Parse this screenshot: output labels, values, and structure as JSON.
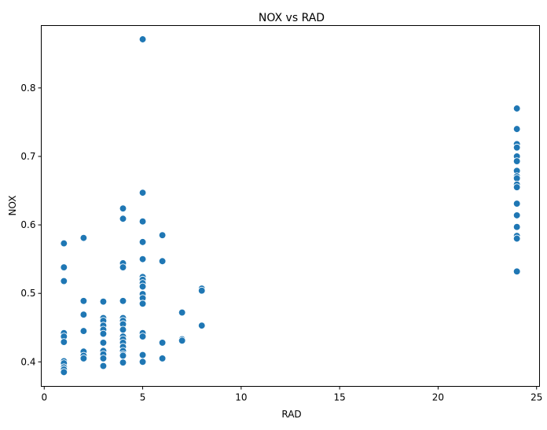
{
  "chart_data": {
    "type": "scatter",
    "title": "NOX vs RAD",
    "xlabel": "RAD",
    "ylabel": "NOX",
    "xlim": [
      -0.15,
      25.15
    ],
    "ylim": [
      0.3642,
      0.8911
    ],
    "xticks": [
      0,
      5,
      10,
      15,
      20,
      25
    ],
    "yticks": [
      0.4,
      0.5,
      0.6,
      0.7,
      0.8
    ],
    "xtick_labels": [
      "0",
      "5",
      "10",
      "15",
      "20",
      "25"
    ],
    "ytick_labels": [
      "0.4",
      "0.5",
      "0.6",
      "0.7",
      "0.8"
    ],
    "grid": false,
    "legend": "none",
    "point_color": "#1f77b4",
    "points": [
      {
        "x": 1,
        "y": 0.573
      },
      {
        "x": 1,
        "y": 0.538
      },
      {
        "x": 1,
        "y": 0.518
      },
      {
        "x": 1,
        "y": 0.442
      },
      {
        "x": 1,
        "y": 0.437
      },
      {
        "x": 1,
        "y": 0.429
      },
      {
        "x": 1,
        "y": 0.401
      },
      {
        "x": 1,
        "y": 0.398
      },
      {
        "x": 1,
        "y": 0.392
      },
      {
        "x": 1,
        "y": 0.389
      },
      {
        "x": 1,
        "y": 0.385
      },
      {
        "x": 2,
        "y": 0.581
      },
      {
        "x": 2,
        "y": 0.489
      },
      {
        "x": 2,
        "y": 0.469
      },
      {
        "x": 2,
        "y": 0.445
      },
      {
        "x": 2,
        "y": 0.415
      },
      {
        "x": 2,
        "y": 0.409
      },
      {
        "x": 2,
        "y": 0.405
      },
      {
        "x": 3,
        "y": 0.488
      },
      {
        "x": 3,
        "y": 0.464
      },
      {
        "x": 3,
        "y": 0.46
      },
      {
        "x": 3,
        "y": 0.453
      },
      {
        "x": 3,
        "y": 0.447
      },
      {
        "x": 3,
        "y": 0.441
      },
      {
        "x": 3,
        "y": 0.428
      },
      {
        "x": 3,
        "y": 0.416
      },
      {
        "x": 3,
        "y": 0.411
      },
      {
        "x": 3,
        "y": 0.405
      },
      {
        "x": 3,
        "y": 0.394
      },
      {
        "x": 4,
        "y": 0.624
      },
      {
        "x": 4,
        "y": 0.609
      },
      {
        "x": 4,
        "y": 0.544
      },
      {
        "x": 4,
        "y": 0.538
      },
      {
        "x": 4,
        "y": 0.489
      },
      {
        "x": 4,
        "y": 0.464
      },
      {
        "x": 4,
        "y": 0.46
      },
      {
        "x": 4,
        "y": 0.455
      },
      {
        "x": 4,
        "y": 0.447
      },
      {
        "x": 4,
        "y": 0.437
      },
      {
        "x": 4,
        "y": 0.433
      },
      {
        "x": 4,
        "y": 0.428
      },
      {
        "x": 4,
        "y": 0.422
      },
      {
        "x": 4,
        "y": 0.416
      },
      {
        "x": 4,
        "y": 0.411
      },
      {
        "x": 4,
        "y": 0.409
      },
      {
        "x": 4,
        "y": 0.399
      },
      {
        "x": 5,
        "y": 0.871
      },
      {
        "x": 5,
        "y": 0.647
      },
      {
        "x": 5,
        "y": 0.605
      },
      {
        "x": 5,
        "y": 0.575
      },
      {
        "x": 5,
        "y": 0.55
      },
      {
        "x": 5,
        "y": 0.524
      },
      {
        "x": 5,
        "y": 0.52
      },
      {
        "x": 5,
        "y": 0.515
      },
      {
        "x": 5,
        "y": 0.51
      },
      {
        "x": 5,
        "y": 0.499
      },
      {
        "x": 5,
        "y": 0.493
      },
      {
        "x": 5,
        "y": 0.485
      },
      {
        "x": 5,
        "y": 0.442
      },
      {
        "x": 5,
        "y": 0.437
      },
      {
        "x": 5,
        "y": 0.41
      },
      {
        "x": 5,
        "y": 0.4
      },
      {
        "x": 6,
        "y": 0.585
      },
      {
        "x": 6,
        "y": 0.547
      },
      {
        "x": 6,
        "y": 0.428
      },
      {
        "x": 6,
        "y": 0.405
      },
      {
        "x": 7,
        "y": 0.472
      },
      {
        "x": 7,
        "y": 0.433
      },
      {
        "x": 7,
        "y": 0.431
      },
      {
        "x": 8,
        "y": 0.507
      },
      {
        "x": 8,
        "y": 0.504
      },
      {
        "x": 8,
        "y": 0.453
      },
      {
        "x": 24,
        "y": 0.77
      },
      {
        "x": 24,
        "y": 0.74
      },
      {
        "x": 24,
        "y": 0.718
      },
      {
        "x": 24,
        "y": 0.713
      },
      {
        "x": 24,
        "y": 0.7
      },
      {
        "x": 24,
        "y": 0.693
      },
      {
        "x": 24,
        "y": 0.679
      },
      {
        "x": 24,
        "y": 0.671
      },
      {
        "x": 24,
        "y": 0.668
      },
      {
        "x": 24,
        "y": 0.659
      },
      {
        "x": 24,
        "y": 0.655
      },
      {
        "x": 24,
        "y": 0.631
      },
      {
        "x": 24,
        "y": 0.614
      },
      {
        "x": 24,
        "y": 0.597
      },
      {
        "x": 24,
        "y": 0.584
      },
      {
        "x": 24,
        "y": 0.58
      },
      {
        "x": 24,
        "y": 0.532
      }
    ]
  }
}
